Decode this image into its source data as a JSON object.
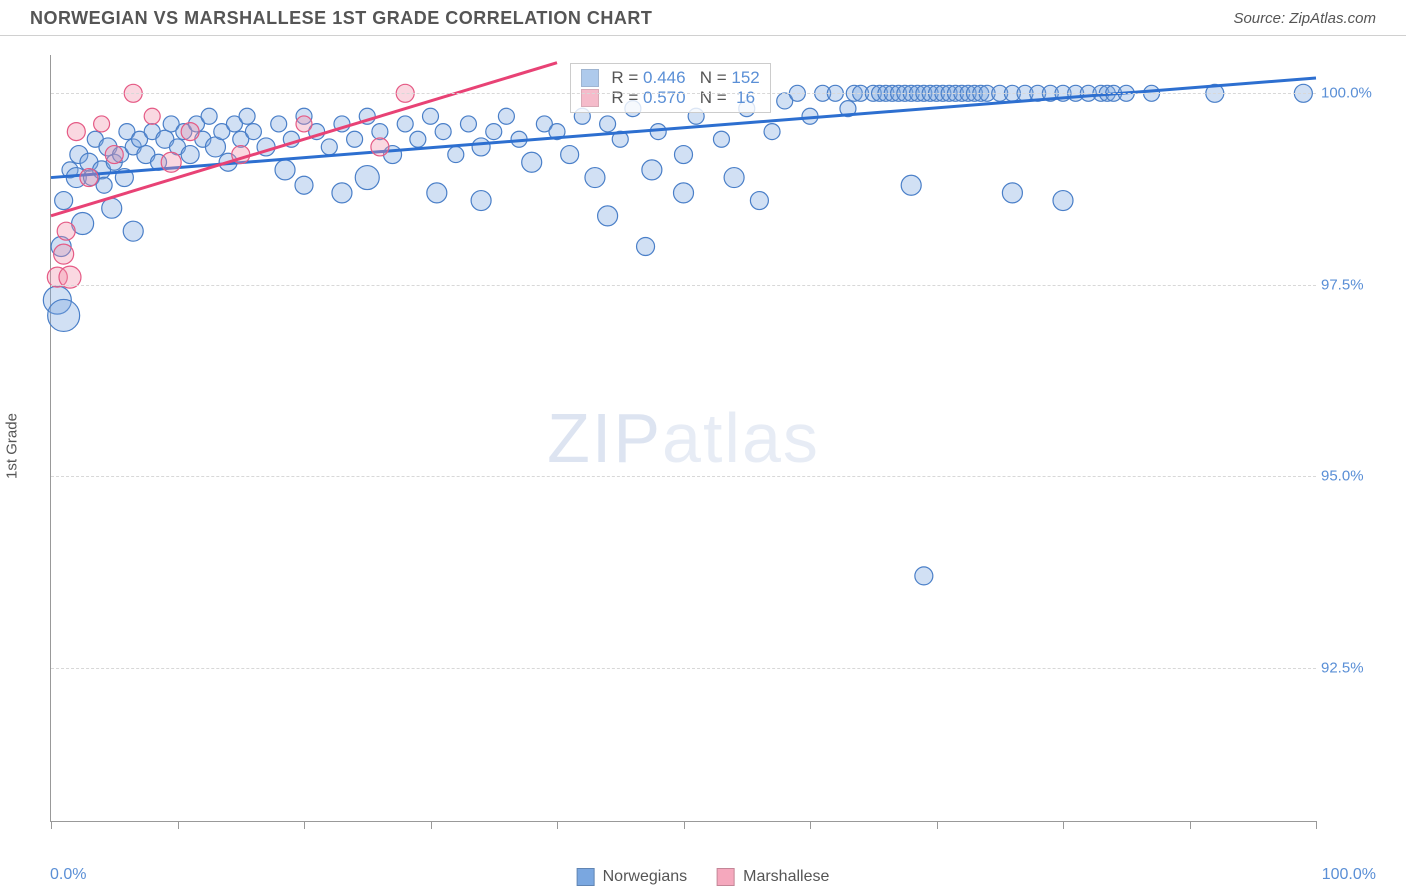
{
  "header": {
    "title": "NORWEGIAN VS MARSHALLESE 1ST GRADE CORRELATION CHART",
    "source": "Source: ZipAtlas.com"
  },
  "watermark": {
    "zip": "ZIP",
    "atlas": "atlas"
  },
  "chart": {
    "type": "scatter",
    "ylabel": "1st Grade",
    "xlim": [
      0,
      100
    ],
    "ylim": [
      90.5,
      100.5
    ],
    "xticks": [
      0,
      10,
      20,
      30,
      40,
      50,
      60,
      70,
      80,
      90,
      100
    ],
    "yticks": [
      92.5,
      95.0,
      97.5,
      100.0
    ],
    "ytick_labels": [
      "92.5%",
      "95.0%",
      "97.5%",
      "100.0%"
    ],
    "xmin_label": "0.0%",
    "xmax_label": "100.0%",
    "background_color": "#ffffff",
    "grid_color": "#d8d8d8",
    "axis_color": "#999999",
    "tick_label_color": "#5a8fd6",
    "series": [
      {
        "name": "Norwegians",
        "marker_color": "#7aa7e0",
        "marker_fill_opacity": 0.35,
        "marker_stroke": "#4a7fc8",
        "line_color": "#2d6fd0",
        "line_width": 3,
        "R": "0.446",
        "N": "152",
        "trend": {
          "x1": 0,
          "y1": 98.9,
          "x2": 100,
          "y2": 100.2
        },
        "points": [
          {
            "x": 0.5,
            "y": 97.3,
            "r": 14
          },
          {
            "x": 0.8,
            "y": 98.0,
            "r": 10
          },
          {
            "x": 1.0,
            "y": 98.6,
            "r": 9
          },
          {
            "x": 1.0,
            "y": 97.1,
            "r": 16
          },
          {
            "x": 1.5,
            "y": 99.0,
            "r": 8
          },
          {
            "x": 2.0,
            "y": 98.9,
            "r": 10
          },
          {
            "x": 2.2,
            "y": 99.2,
            "r": 9
          },
          {
            "x": 2.5,
            "y": 98.3,
            "r": 11
          },
          {
            "x": 3.0,
            "y": 99.1,
            "r": 9
          },
          {
            "x": 3.2,
            "y": 98.9,
            "r": 8
          },
          {
            "x": 3.5,
            "y": 99.4,
            "r": 8
          },
          {
            "x": 4.0,
            "y": 99.0,
            "r": 9
          },
          {
            "x": 4.2,
            "y": 98.8,
            "r": 8
          },
          {
            "x": 4.5,
            "y": 99.3,
            "r": 9
          },
          {
            "x": 4.8,
            "y": 98.5,
            "r": 10
          },
          {
            "x": 5.0,
            "y": 99.1,
            "r": 8
          },
          {
            "x": 5.5,
            "y": 99.2,
            "r": 8
          },
          {
            "x": 5.8,
            "y": 98.9,
            "r": 9
          },
          {
            "x": 6.0,
            "y": 99.5,
            "r": 8
          },
          {
            "x": 6.5,
            "y": 99.3,
            "r": 8
          },
          {
            "x": 6.5,
            "y": 98.2,
            "r": 10
          },
          {
            "x": 7.0,
            "y": 99.4,
            "r": 8
          },
          {
            "x": 7.5,
            "y": 99.2,
            "r": 9
          },
          {
            "x": 8.0,
            "y": 99.5,
            "r": 8
          },
          {
            "x": 8.5,
            "y": 99.1,
            "r": 8
          },
          {
            "x": 9.0,
            "y": 99.4,
            "r": 9
          },
          {
            "x": 9.5,
            "y": 99.6,
            "r": 8
          },
          {
            "x": 10.0,
            "y": 99.3,
            "r": 8
          },
          {
            "x": 10.5,
            "y": 99.5,
            "r": 8
          },
          {
            "x": 11.0,
            "y": 99.2,
            "r": 9
          },
          {
            "x": 11.5,
            "y": 99.6,
            "r": 8
          },
          {
            "x": 12.0,
            "y": 99.4,
            "r": 8
          },
          {
            "x": 12.5,
            "y": 99.7,
            "r": 8
          },
          {
            "x": 13.0,
            "y": 99.3,
            "r": 10
          },
          {
            "x": 13.5,
            "y": 99.5,
            "r": 8
          },
          {
            "x": 14.0,
            "y": 99.1,
            "r": 9
          },
          {
            "x": 14.5,
            "y": 99.6,
            "r": 8
          },
          {
            "x": 15.0,
            "y": 99.4,
            "r": 8
          },
          {
            "x": 15.5,
            "y": 99.7,
            "r": 8
          },
          {
            "x": 16.0,
            "y": 99.5,
            "r": 8
          },
          {
            "x": 17.0,
            "y": 99.3,
            "r": 9
          },
          {
            "x": 18.0,
            "y": 99.6,
            "r": 8
          },
          {
            "x": 18.5,
            "y": 99.0,
            "r": 10
          },
          {
            "x": 19.0,
            "y": 99.4,
            "r": 8
          },
          {
            "x": 20.0,
            "y": 99.7,
            "r": 8
          },
          {
            "x": 20.0,
            "y": 98.8,
            "r": 9
          },
          {
            "x": 21.0,
            "y": 99.5,
            "r": 8
          },
          {
            "x": 22.0,
            "y": 99.3,
            "r": 8
          },
          {
            "x": 23.0,
            "y": 99.6,
            "r": 8
          },
          {
            "x": 23.0,
            "y": 98.7,
            "r": 10
          },
          {
            "x": 24.0,
            "y": 99.4,
            "r": 8
          },
          {
            "x": 25.0,
            "y": 99.7,
            "r": 8
          },
          {
            "x": 25.0,
            "y": 98.9,
            "r": 12
          },
          {
            "x": 26.0,
            "y": 99.5,
            "r": 8
          },
          {
            "x": 27.0,
            "y": 99.2,
            "r": 9
          },
          {
            "x": 28.0,
            "y": 99.6,
            "r": 8
          },
          {
            "x": 29.0,
            "y": 99.4,
            "r": 8
          },
          {
            "x": 30.0,
            "y": 99.7,
            "r": 8
          },
          {
            "x": 30.5,
            "y": 98.7,
            "r": 10
          },
          {
            "x": 31.0,
            "y": 99.5,
            "r": 8
          },
          {
            "x": 32.0,
            "y": 99.2,
            "r": 8
          },
          {
            "x": 33.0,
            "y": 99.6,
            "r": 8
          },
          {
            "x": 34.0,
            "y": 99.3,
            "r": 9
          },
          {
            "x": 34.0,
            "y": 98.6,
            "r": 10
          },
          {
            "x": 35.0,
            "y": 99.5,
            "r": 8
          },
          {
            "x": 36.0,
            "y": 99.7,
            "r": 8
          },
          {
            "x": 37.0,
            "y": 99.4,
            "r": 8
          },
          {
            "x": 38.0,
            "y": 99.1,
            "r": 10
          },
          {
            "x": 39.0,
            "y": 99.6,
            "r": 8
          },
          {
            "x": 40.0,
            "y": 99.5,
            "r": 8
          },
          {
            "x": 41.0,
            "y": 99.2,
            "r": 9
          },
          {
            "x": 42.0,
            "y": 99.7,
            "r": 8
          },
          {
            "x": 43.0,
            "y": 98.9,
            "r": 10
          },
          {
            "x": 44.0,
            "y": 99.6,
            "r": 8
          },
          {
            "x": 44.0,
            "y": 98.4,
            "r": 10
          },
          {
            "x": 45.0,
            "y": 99.4,
            "r": 8
          },
          {
            "x": 46.0,
            "y": 99.8,
            "r": 8
          },
          {
            "x": 47.0,
            "y": 98.0,
            "r": 9
          },
          {
            "x": 47.5,
            "y": 99.0,
            "r": 10
          },
          {
            "x": 48.0,
            "y": 99.5,
            "r": 8
          },
          {
            "x": 50.0,
            "y": 99.2,
            "r": 9
          },
          {
            "x": 50.0,
            "y": 98.7,
            "r": 10
          },
          {
            "x": 51.0,
            "y": 99.7,
            "r": 8
          },
          {
            "x": 53.0,
            "y": 99.4,
            "r": 8
          },
          {
            "x": 54.0,
            "y": 98.9,
            "r": 10
          },
          {
            "x": 55.0,
            "y": 99.8,
            "r": 8
          },
          {
            "x": 56.0,
            "y": 98.6,
            "r": 9
          },
          {
            "x": 57.0,
            "y": 99.5,
            "r": 8
          },
          {
            "x": 58.0,
            "y": 99.9,
            "r": 8
          },
          {
            "x": 59.0,
            "y": 100.0,
            "r": 8
          },
          {
            "x": 60.0,
            "y": 99.7,
            "r": 8
          },
          {
            "x": 61.0,
            "y": 100.0,
            "r": 8
          },
          {
            "x": 62.0,
            "y": 100.0,
            "r": 8
          },
          {
            "x": 63.0,
            "y": 99.8,
            "r": 8
          },
          {
            "x": 63.5,
            "y": 100.0,
            "r": 8
          },
          {
            "x": 64.0,
            "y": 100.0,
            "r": 8
          },
          {
            "x": 65.0,
            "y": 100.0,
            "r": 8
          },
          {
            "x": 65.5,
            "y": 100.0,
            "r": 8
          },
          {
            "x": 66.0,
            "y": 100.0,
            "r": 8
          },
          {
            "x": 66.5,
            "y": 100.0,
            "r": 8
          },
          {
            "x": 67.0,
            "y": 100.0,
            "r": 8
          },
          {
            "x": 67.5,
            "y": 100.0,
            "r": 8
          },
          {
            "x": 68.0,
            "y": 100.0,
            "r": 8
          },
          {
            "x": 68.0,
            "y": 98.8,
            "r": 10
          },
          {
            "x": 68.5,
            "y": 100.0,
            "r": 8
          },
          {
            "x": 69.0,
            "y": 100.0,
            "r": 8
          },
          {
            "x": 69.0,
            "y": 93.7,
            "r": 9
          },
          {
            "x": 69.5,
            "y": 100.0,
            "r": 8
          },
          {
            "x": 70.0,
            "y": 100.0,
            "r": 8
          },
          {
            "x": 70.5,
            "y": 100.0,
            "r": 8
          },
          {
            "x": 71.0,
            "y": 100.0,
            "r": 8
          },
          {
            "x": 71.5,
            "y": 100.0,
            "r": 8
          },
          {
            "x": 72.0,
            "y": 100.0,
            "r": 8
          },
          {
            "x": 72.5,
            "y": 100.0,
            "r": 8
          },
          {
            "x": 73.0,
            "y": 100.0,
            "r": 8
          },
          {
            "x": 73.5,
            "y": 100.0,
            "r": 8
          },
          {
            "x": 74.0,
            "y": 100.0,
            "r": 8
          },
          {
            "x": 75.0,
            "y": 100.0,
            "r": 8
          },
          {
            "x": 76.0,
            "y": 100.0,
            "r": 8
          },
          {
            "x": 76.0,
            "y": 98.7,
            "r": 10
          },
          {
            "x": 77.0,
            "y": 100.0,
            "r": 8
          },
          {
            "x": 78.0,
            "y": 100.0,
            "r": 8
          },
          {
            "x": 79.0,
            "y": 100.0,
            "r": 8
          },
          {
            "x": 80.0,
            "y": 100.0,
            "r": 8
          },
          {
            "x": 80.0,
            "y": 98.6,
            "r": 10
          },
          {
            "x": 81.0,
            "y": 100.0,
            "r": 8
          },
          {
            "x": 82.0,
            "y": 100.0,
            "r": 8
          },
          {
            "x": 83.0,
            "y": 100.0,
            "r": 8
          },
          {
            "x": 83.5,
            "y": 100.0,
            "r": 8
          },
          {
            "x": 84.0,
            "y": 100.0,
            "r": 8
          },
          {
            "x": 85.0,
            "y": 100.0,
            "r": 8
          },
          {
            "x": 87.0,
            "y": 100.0,
            "r": 8
          },
          {
            "x": 92.0,
            "y": 100.0,
            "r": 9
          },
          {
            "x": 99.0,
            "y": 100.0,
            "r": 9
          }
        ]
      },
      {
        "name": "Marshallese",
        "marker_color": "#f08fa8",
        "marker_fill_opacity": 0.35,
        "marker_stroke": "#e55a85",
        "line_color": "#e84275",
        "line_width": 3,
        "R": "0.570",
        "N": "16",
        "trend": {
          "x1": 0,
          "y1": 98.4,
          "x2": 40,
          "y2": 100.4
        },
        "points": [
          {
            "x": 0.5,
            "y": 97.6,
            "r": 10
          },
          {
            "x": 1.0,
            "y": 97.9,
            "r": 10
          },
          {
            "x": 1.2,
            "y": 98.2,
            "r": 9
          },
          {
            "x": 1.5,
            "y": 97.6,
            "r": 11
          },
          {
            "x": 2.0,
            "y": 99.5,
            "r": 9
          },
          {
            "x": 3.0,
            "y": 98.9,
            "r": 9
          },
          {
            "x": 4.0,
            "y": 99.6,
            "r": 8
          },
          {
            "x": 5.0,
            "y": 99.2,
            "r": 9
          },
          {
            "x": 6.5,
            "y": 100.0,
            "r": 9
          },
          {
            "x": 8.0,
            "y": 99.7,
            "r": 8
          },
          {
            "x": 9.5,
            "y": 99.1,
            "r": 10
          },
          {
            "x": 11.0,
            "y": 99.5,
            "r": 9
          },
          {
            "x": 15.0,
            "y": 99.2,
            "r": 9
          },
          {
            "x": 20.0,
            "y": 99.6,
            "r": 8
          },
          {
            "x": 26.0,
            "y": 99.3,
            "r": 9
          },
          {
            "x": 28.0,
            "y": 100.0,
            "r": 9
          }
        ]
      }
    ],
    "legend_bottom": [
      {
        "label": "Norwegians",
        "color": "#7aa7e0"
      },
      {
        "label": "Marshallese",
        "color": "#f5a8bd"
      }
    ],
    "stats_box": {
      "left_pct": 41,
      "top_pct": 1
    }
  }
}
